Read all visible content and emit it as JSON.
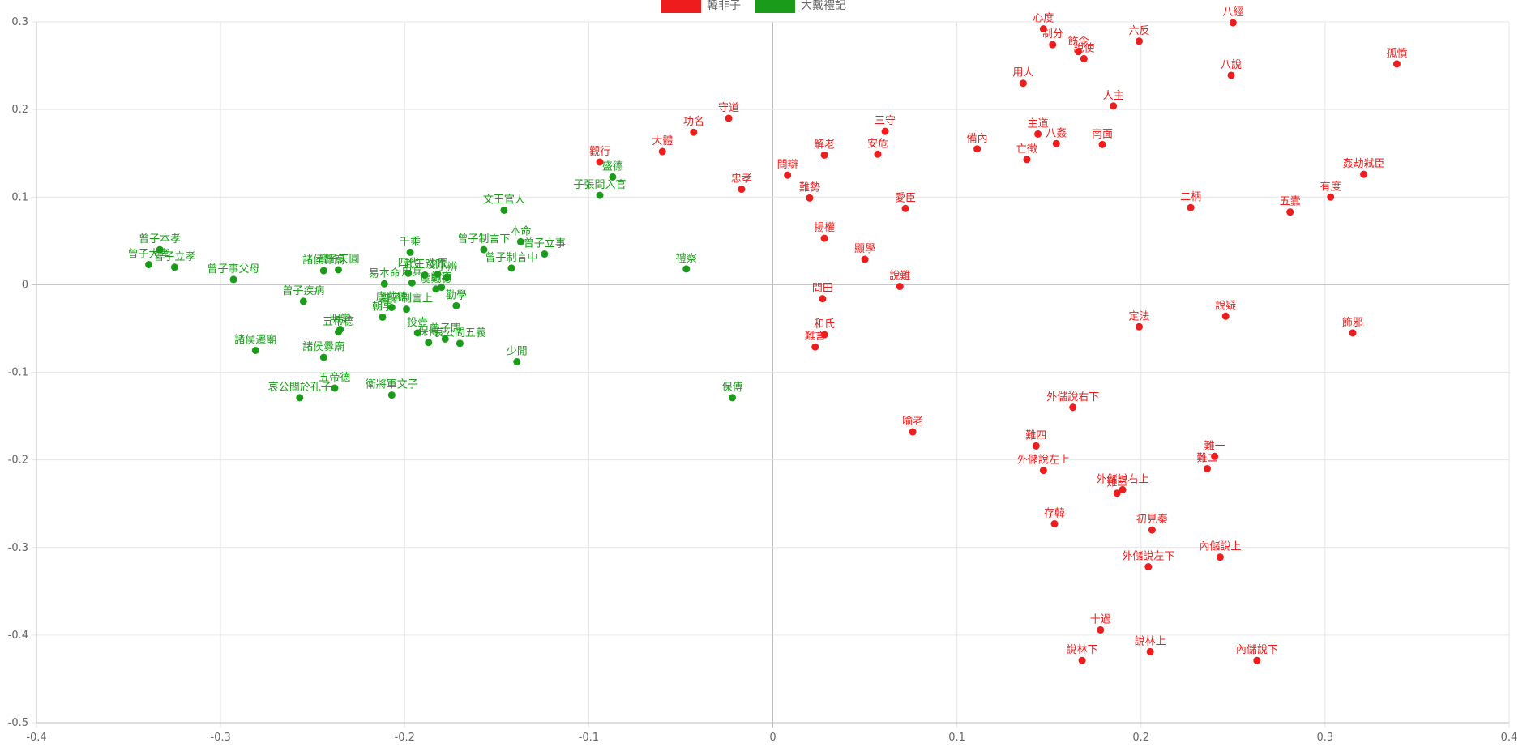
{
  "chart_data": {
    "type": "scatter",
    "title": "",
    "xlabel": "",
    "ylabel": "",
    "xlim": [
      -0.4,
      0.4
    ],
    "ylim": [
      -0.5,
      0.3
    ],
    "x_ticks": [
      "-0.4",
      "-0.3",
      "-0.2",
      "-0.1",
      "0",
      "0.1",
      "0.2",
      "0.3",
      "0.4"
    ],
    "y_ticks": [
      "0.3",
      "0.2",
      "0.1",
      "0",
      "-0.1",
      "-0.2",
      "-0.3",
      "-0.4",
      "-0.5"
    ],
    "grid": true,
    "legend": "top-center",
    "series": [
      {
        "name": "韓非子",
        "color": "#ee1c1c",
        "points": [
          {
            "label": "心度",
            "x": 0.147,
            "y": 0.292
          },
          {
            "label": "制分",
            "x": 0.152,
            "y": 0.274
          },
          {
            "label": "飭令",
            "x": 0.166,
            "y": 0.266
          },
          {
            "label": "說使",
            "x": 0.169,
            "y": 0.258
          },
          {
            "label": "六反",
            "x": 0.199,
            "y": 0.278
          },
          {
            "label": "八經",
            "x": 0.25,
            "y": 0.299
          },
          {
            "label": "八說",
            "x": 0.249,
            "y": 0.239
          },
          {
            "label": "孤憤",
            "x": 0.339,
            "y": 0.252
          },
          {
            "label": "用人",
            "x": 0.136,
            "y": 0.23
          },
          {
            "label": "人主",
            "x": 0.185,
            "y": 0.204
          },
          {
            "label": "守道",
            "x": -0.024,
            "y": 0.19
          },
          {
            "label": "功名",
            "x": -0.043,
            "y": 0.174
          },
          {
            "label": "大體",
            "x": -0.06,
            "y": 0.152
          },
          {
            "label": "觀行",
            "x": -0.094,
            "y": 0.14
          },
          {
            "label": "三守",
            "x": 0.061,
            "y": 0.175
          },
          {
            "label": "主道",
            "x": 0.144,
            "y": 0.172
          },
          {
            "label": "八姦",
            "x": 0.154,
            "y": 0.161
          },
          {
            "label": "南面",
            "x": 0.179,
            "y": 0.16
          },
          {
            "label": "備內",
            "x": 0.111,
            "y": 0.155
          },
          {
            "label": "亡徵",
            "x": 0.138,
            "y": 0.143
          },
          {
            "label": "解老",
            "x": 0.028,
            "y": 0.148
          },
          {
            "label": "安危",
            "x": 0.057,
            "y": 0.149
          },
          {
            "label": "問辯",
            "x": 0.008,
            "y": 0.125
          },
          {
            "label": "忠孝",
            "x": -0.017,
            "y": 0.109
          },
          {
            "label": "難勢",
            "x": 0.02,
            "y": 0.099
          },
          {
            "label": "愛臣",
            "x": 0.072,
            "y": 0.087
          },
          {
            "label": "姦劫弒臣",
            "x": 0.321,
            "y": 0.126
          },
          {
            "label": "有度",
            "x": 0.303,
            "y": 0.1
          },
          {
            "label": "二柄",
            "x": 0.227,
            "y": 0.088
          },
          {
            "label": "五蠹",
            "x": 0.281,
            "y": 0.083
          },
          {
            "label": "揚權",
            "x": 0.028,
            "y": 0.053
          },
          {
            "label": "顯學",
            "x": 0.05,
            "y": 0.029
          },
          {
            "label": "說難",
            "x": 0.069,
            "y": -0.002
          },
          {
            "label": "問田",
            "x": 0.027,
            "y": -0.016
          },
          {
            "label": "和氏",
            "x": 0.028,
            "y": -0.057
          },
          {
            "label": "難言",
            "x": 0.023,
            "y": -0.071
          },
          {
            "label": "定法",
            "x": 0.199,
            "y": -0.048
          },
          {
            "label": "說疑",
            "x": 0.246,
            "y": -0.036
          },
          {
            "label": "飾邪",
            "x": 0.315,
            "y": -0.055
          },
          {
            "label": "外儲說右下",
            "x": 0.163,
            "y": -0.14
          },
          {
            "label": "喻老",
            "x": 0.076,
            "y": -0.168
          },
          {
            "label": "難四",
            "x": 0.143,
            "y": -0.184
          },
          {
            "label": "外儲說左上",
            "x": 0.147,
            "y": -0.212
          },
          {
            "label": "難一",
            "x": 0.24,
            "y": -0.196
          },
          {
            "label": "難二",
            "x": 0.236,
            "y": -0.21
          },
          {
            "label": "外儲說右上",
            "x": 0.19,
            "y": -0.234
          },
          {
            "label": "難三",
            "x": 0.187,
            "y": -0.238
          },
          {
            "label": "存韓",
            "x": 0.153,
            "y": -0.273
          },
          {
            "label": "初見秦",
            "x": 0.206,
            "y": -0.28
          },
          {
            "label": "內儲說上",
            "x": 0.243,
            "y": -0.311
          },
          {
            "label": "外儲說左下",
            "x": 0.204,
            "y": -0.322
          },
          {
            "label": "十過",
            "x": 0.178,
            "y": -0.394
          },
          {
            "label": "說林上",
            "x": 0.205,
            "y": -0.419
          },
          {
            "label": "說林下",
            "x": 0.168,
            "y": -0.429
          },
          {
            "label": "內儲說下",
            "x": 0.263,
            "y": -0.429
          }
        ]
      },
      {
        "name": "大戴禮記",
        "color": "#1a9c1a",
        "points": [
          {
            "label": "盛德",
            "x": -0.087,
            "y": 0.123
          },
          {
            "label": "子張問入官",
            "x": -0.094,
            "y": 0.102
          },
          {
            "label": "文王官人",
            "x": -0.146,
            "y": 0.085
          },
          {
            "label": "本命",
            "x": -0.137,
            "y": 0.049
          },
          {
            "label": "曾子立事",
            "x": -0.124,
            "y": 0.035
          },
          {
            "label": "曾子制言下",
            "x": -0.157,
            "y": 0.04
          },
          {
            "label": "曾子制言中",
            "x": -0.142,
            "y": 0.019
          },
          {
            "label": "禮察",
            "x": -0.047,
            "y": 0.018
          },
          {
            "label": "曾子本孝",
            "x": -0.333,
            "y": 0.04
          },
          {
            "label": "曾子大孝",
            "x": -0.339,
            "y": 0.023
          },
          {
            "label": "曾子立孝",
            "x": -0.325,
            "y": 0.02
          },
          {
            "label": "曾子事父母",
            "x": -0.293,
            "y": 0.006
          },
          {
            "label": "諸侯釁廟",
            "x": -0.244,
            "y": 0.016
          },
          {
            "label": "曾子天圓",
            "x": -0.236,
            "y": 0.017
          },
          {
            "label": "千乘",
            "x": -0.197,
            "y": 0.037
          },
          {
            "label": "易本命",
            "x": -0.211,
            "y": 0.001
          },
          {
            "label": "四代",
            "x": -0.198,
            "y": 0.013
          },
          {
            "label": "用兵",
            "x": -0.196,
            "y": 0.002
          },
          {
            "label": "武王踐阼",
            "x": -0.189,
            "y": 0.011
          },
          {
            "label": "少閒",
            "x": -0.182,
            "y": 0.012
          },
          {
            "label": "小辨",
            "x": -0.177,
            "y": 0.008
          },
          {
            "label": "誥志",
            "x": -0.18,
            "y": -0.003
          },
          {
            "label": "虞戴德",
            "x": -0.183,
            "y": -0.005
          },
          {
            "label": "曾子疾病",
            "x": -0.255,
            "y": -0.019
          },
          {
            "label": "勸學",
            "x": -0.172,
            "y": -0.024
          },
          {
            "label": "曾子制言上",
            "x": -0.199,
            "y": -0.028
          },
          {
            "label": "虞戴德",
            "x": -0.207,
            "y": -0.026
          },
          {
            "label": "朝事",
            "x": -0.212,
            "y": -0.037
          },
          {
            "label": "哀公問五義",
            "x": -0.17,
            "y": -0.067
          },
          {
            "label": "保傅",
            "x": -0.187,
            "y": -0.066
          },
          {
            "label": "投壺",
            "x": -0.193,
            "y": -0.055
          },
          {
            "label": "曾子問",
            "x": -0.178,
            "y": -0.062
          },
          {
            "label": "明堂",
            "x": -0.235,
            "y": -0.051
          },
          {
            "label": "五帝德",
            "x": -0.236,
            "y": -0.054
          },
          {
            "label": "諸侯遷廟",
            "x": -0.281,
            "y": -0.075
          },
          {
            "label": "諸侯釁廟",
            "x": -0.244,
            "y": -0.083
          },
          {
            "label": "少閒",
            "x": -0.139,
            "y": -0.088
          },
          {
            "label": "五帝德",
            "x": -0.238,
            "y": -0.118
          },
          {
            "label": "哀公問於孔子",
            "x": -0.257,
            "y": -0.129
          },
          {
            "label": "衛將軍文子",
            "x": -0.207,
            "y": -0.126
          },
          {
            "label": "保傅",
            "x": -0.022,
            "y": -0.129
          }
        ]
      }
    ]
  }
}
